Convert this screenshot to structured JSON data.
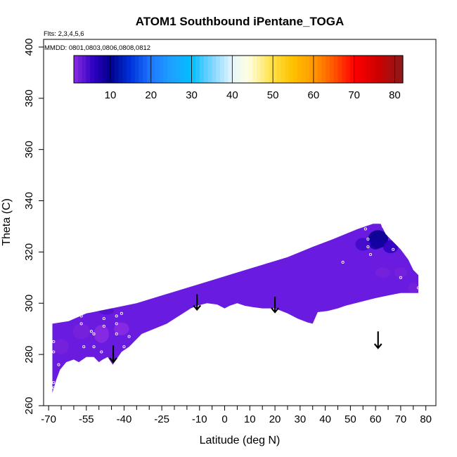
{
  "chart_data": {
    "type": "heatmap",
    "title": "ATOM1 Southbound iPentane_TOGA",
    "annotations": {
      "flights": "Flts: 2,3,4,5,6",
      "dates": "MMDD: 0801,0803,0806,0808,0812"
    },
    "xlabel": "Latitude (deg N)",
    "ylabel": "Theta (C)",
    "xlim": [
      -72,
      84
    ],
    "ylim": [
      260,
      403
    ],
    "x_ticks": [
      -70,
      -55,
      -40,
      -25,
      -10,
      0,
      10,
      20,
      30,
      40,
      50,
      60,
      70,
      80
    ],
    "x_minor_ticks": [
      -65,
      -60,
      -50,
      -45,
      -35,
      -30,
      -20,
      -15,
      -5,
      5,
      15,
      25,
      35,
      45,
      55,
      65,
      75
    ],
    "y_ticks": [
      260,
      280,
      300,
      320,
      340,
      360,
      380,
      400
    ],
    "colorbar": {
      "min": 1,
      "max": 82,
      "ticks": [
        10,
        20,
        30,
        40,
        50,
        60,
        70,
        80
      ],
      "stops": [
        {
          "value": 1,
          "color": "#8a2be2"
        },
        {
          "value": 6,
          "color": "#2c00c0"
        },
        {
          "value": 10,
          "color": "#00008b"
        },
        {
          "value": 15,
          "color": "#0033dd"
        },
        {
          "value": 20,
          "color": "#1e78ff"
        },
        {
          "value": 25,
          "color": "#1ea0ff"
        },
        {
          "value": 30,
          "color": "#00bfff"
        },
        {
          "value": 35,
          "color": "#7fd4ff"
        },
        {
          "value": 40,
          "color": "#e6f6ff"
        },
        {
          "value": 44,
          "color": "#ffffe0"
        },
        {
          "value": 50,
          "color": "#ffe040"
        },
        {
          "value": 55,
          "color": "#ffc000"
        },
        {
          "value": 60,
          "color": "#ff9900"
        },
        {
          "value": 65,
          "color": "#ff5500"
        },
        {
          "value": 70,
          "color": "#ff0000"
        },
        {
          "value": 76,
          "color": "#cc0000"
        },
        {
          "value": 82,
          "color": "#8b1a1a"
        }
      ]
    },
    "field": {
      "background_value": 3,
      "background_color": "#6a1be0",
      "outline": [
        [
          -68.5,
          265
        ],
        [
          -67,
          270
        ],
        [
          -65.5,
          274
        ],
        [
          -63,
          277
        ],
        [
          -60,
          278
        ],
        [
          -58,
          277
        ],
        [
          -55,
          279
        ],
        [
          -52,
          279
        ],
        [
          -50,
          277
        ],
        [
          -48.5,
          278
        ],
        [
          -46.5,
          279
        ],
        [
          -44.5,
          276
        ],
        [
          -41,
          281
        ],
        [
          -38,
          283
        ],
        [
          -33,
          288
        ],
        [
          -23,
          292
        ],
        [
          -13.5,
          298
        ],
        [
          -11,
          299
        ],
        [
          -7,
          300
        ],
        [
          -3,
          299.5
        ],
        [
          0,
          298
        ],
        [
          2,
          299
        ],
        [
          5,
          300
        ],
        [
          8,
          299
        ],
        [
          11,
          298.5
        ],
        [
          15,
          298
        ],
        [
          20,
          298
        ],
        [
          25,
          296
        ],
        [
          29,
          294
        ],
        [
          33,
          292.5
        ],
        [
          35,
          292
        ],
        [
          37,
          296.5
        ],
        [
          41,
          297
        ],
        [
          45,
          298
        ],
        [
          48,
          299
        ],
        [
          52,
          300
        ],
        [
          56,
          301
        ],
        [
          60,
          302
        ],
        [
          65,
          303
        ],
        [
          70,
          304
        ],
        [
          77,
          304
        ],
        [
          77,
          311
        ],
        [
          75,
          313
        ],
        [
          73,
          317
        ],
        [
          70,
          321
        ],
        [
          66,
          325
        ],
        [
          64,
          327
        ],
        [
          62,
          331
        ],
        [
          59,
          331
        ],
        [
          53,
          329
        ],
        [
          43,
          325
        ],
        [
          35,
          322
        ],
        [
          25,
          318
        ],
        [
          15,
          315
        ],
        [
          5,
          312
        ],
        [
          -5,
          309
        ],
        [
          -15,
          306
        ],
        [
          -25,
          303
        ],
        [
          -35,
          300
        ],
        [
          -45,
          298
        ],
        [
          -55,
          296
        ],
        [
          -62,
          293
        ],
        [
          -68.5,
          292
        ]
      ],
      "features": [
        {
          "x": 61,
          "y": 325,
          "rx": 4,
          "ry": 3.5,
          "value": 10
        },
        {
          "x": 60,
          "y": 323,
          "rx": 2.5,
          "ry": 2,
          "value": 8
        },
        {
          "x": 55,
          "y": 323,
          "rx": 3,
          "ry": 2.5,
          "value": 5
        },
        {
          "x": 66,
          "y": 322,
          "rx": 3,
          "ry": 2.5,
          "value": 6
        },
        {
          "x": 63,
          "y": 312,
          "rx": 3,
          "ry": 2,
          "value": 2
        },
        {
          "x": 70,
          "y": 312,
          "rx": 2.5,
          "ry": 2,
          "value": 2
        },
        {
          "x": 75,
          "y": 306,
          "rx": 2,
          "ry": 2,
          "value": 2
        },
        {
          "x": -49,
          "y": 288,
          "rx": 3,
          "ry": 3.5,
          "value": 1
        },
        {
          "x": -57,
          "y": 289,
          "rx": 3.5,
          "ry": 3,
          "value": 2
        },
        {
          "x": -65,
          "y": 283,
          "rx": 3,
          "ry": 3,
          "value": 2
        },
        {
          "x": -41,
          "y": 290,
          "rx": 3,
          "ry": 2.5,
          "value": 1
        },
        {
          "x": -47,
          "y": 297,
          "rx": 3,
          "ry": 1.5,
          "value": 4
        }
      ]
    },
    "sample_points": [
      {
        "x": -68,
        "y": 267
      },
      {
        "x": -68,
        "y": 269
      },
      {
        "x": -68,
        "y": 281
      },
      {
        "x": -68,
        "y": 285
      },
      {
        "x": -66,
        "y": 276
      },
      {
        "x": -57,
        "y": 295
      },
      {
        "x": -57,
        "y": 292
      },
      {
        "x": -56,
        "y": 283
      },
      {
        "x": -53,
        "y": 289
      },
      {
        "x": -52,
        "y": 288
      },
      {
        "x": -52,
        "y": 283
      },
      {
        "x": -48,
        "y": 294
      },
      {
        "x": -48,
        "y": 291
      },
      {
        "x": -49,
        "y": 281
      },
      {
        "x": -43,
        "y": 295
      },
      {
        "x": -43,
        "y": 292
      },
      {
        "x": -43,
        "y": 288
      },
      {
        "x": -41,
        "y": 296
      },
      {
        "x": -40,
        "y": 283
      },
      {
        "x": -38,
        "y": 287
      },
      {
        "x": 47,
        "y": 316
      },
      {
        "x": 56,
        "y": 329
      },
      {
        "x": 57,
        "y": 325
      },
      {
        "x": 57,
        "y": 322
      },
      {
        "x": 58,
        "y": 319
      },
      {
        "x": 63,
        "y": 333
      },
      {
        "x": 63,
        "y": 330
      },
      {
        "x": 67,
        "y": 321
      },
      {
        "x": 70,
        "y": 310
      },
      {
        "x": 77,
        "y": 314
      },
      {
        "x": 77,
        "y": 306
      }
    ],
    "arrows": [
      {
        "x": -44.3,
        "y_top": 283.5,
        "y_tip": 277
      },
      {
        "x": -11,
        "y_top": 303.5,
        "y_tip": 297.5
      },
      {
        "x": 20,
        "y_top": 302.5,
        "y_tip": 296.5
      },
      {
        "x": 61,
        "y_top": 289,
        "y_tip": 282.5
      }
    ]
  }
}
